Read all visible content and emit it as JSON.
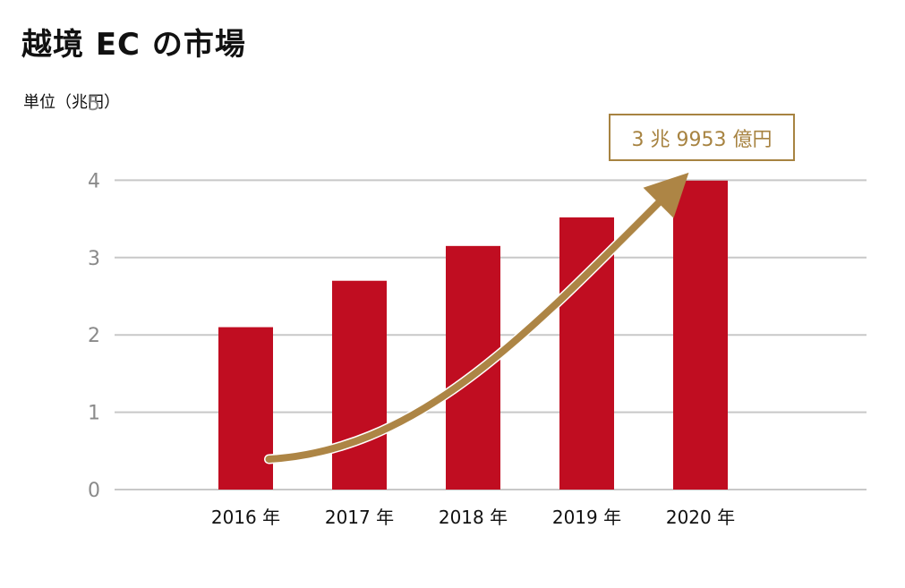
{
  "title": "越境 EC の市場",
  "unit_label": "単位（兆円）",
  "callout": "3 兆 9953 億円",
  "colors": {
    "bar": "#c00d21",
    "arrow": "#ad8545",
    "grid": "#c8c8c8",
    "callout": "#a78341"
  },
  "chart_data": {
    "type": "bar",
    "categories": [
      "2016 年",
      "2017 年",
      "2018 年",
      "2019 年",
      "2020 年"
    ],
    "values": [
      2.1,
      2.7,
      3.15,
      3.52,
      3.9953
    ],
    "ylim": [
      0,
      5
    ],
    "yticks": [
      0,
      1,
      2,
      3,
      4,
      5
    ],
    "grid": true,
    "annotation": "3 兆 9953 億円"
  }
}
